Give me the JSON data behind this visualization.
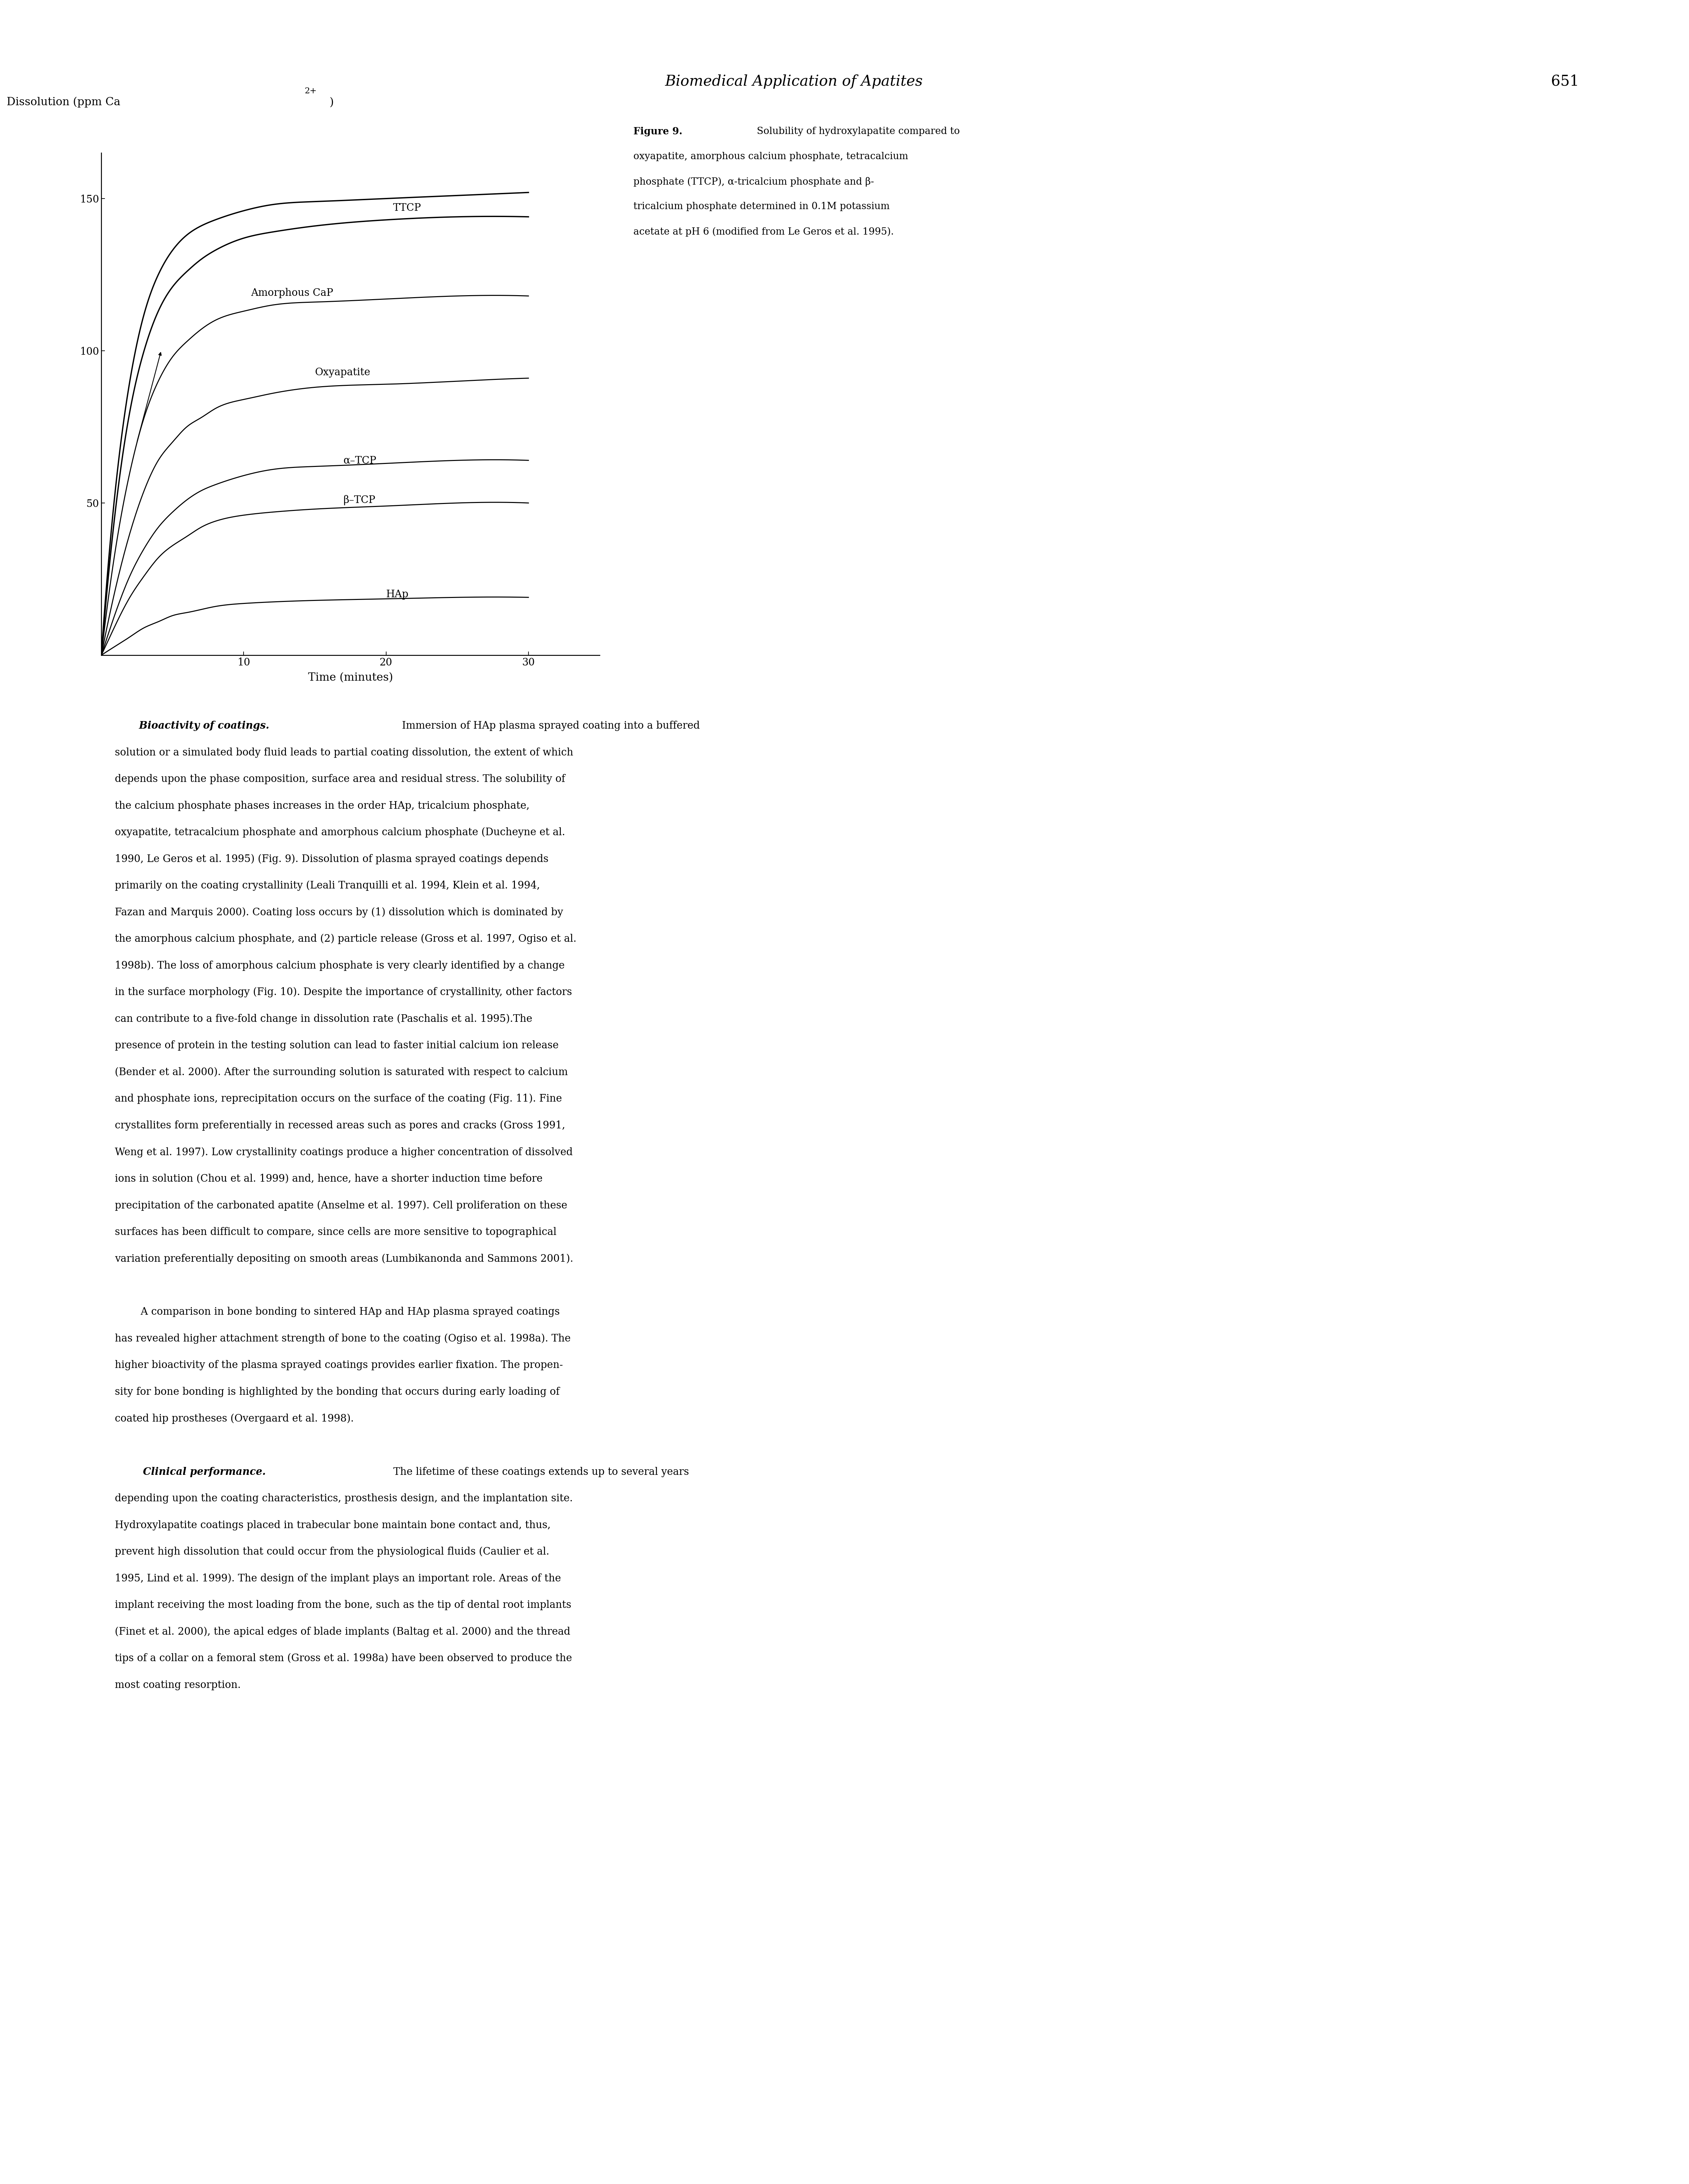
{
  "page_title": "Biomedical Application of Apatites",
  "page_number": "651",
  "figure_caption_bold": "Figure 9.",
  "figure_caption_text": " Solubility of hydroxylapatite compared to oxyapatite, amorphous calcium phosphate, tetracalcium phosphate (TTCP), α-tricalcium phosphate and β-tricalcium phosphate determined in 0.1M potassium acetate at pH 6 (modified from Le Geros et al. 1995).",
  "ylabel_main": "Dissolution (ppm Ca",
  "ylabel_super": "2+",
  "ylabel_end": ")",
  "xlabel": "Time (minutes)",
  "yticks": [
    50,
    100,
    150
  ],
  "xticks": [
    10,
    20,
    30
  ],
  "xlim": [
    0,
    35
  ],
  "ylim": [
    0,
    165
  ],
  "curves": {
    "TTCP_upper": {
      "x": [
        0,
        1,
        2,
        3,
        4,
        5,
        6,
        7,
        8,
        10,
        12,
        15,
        20,
        25,
        30
      ],
      "y": [
        0,
        55,
        90,
        112,
        125,
        133,
        138,
        141,
        143,
        146,
        148,
        149,
        150,
        151,
        152
      ]
    },
    "TTCP_lower": {
      "x": [
        0,
        1,
        2,
        3,
        4,
        5,
        6,
        7,
        8,
        10,
        12,
        15,
        20,
        25,
        30
      ],
      "y": [
        0,
        48,
        80,
        100,
        113,
        121,
        126,
        130,
        133,
        137,
        139,
        141,
        143,
        144,
        144
      ]
    },
    "AmorphousCaP": {
      "x": [
        0,
        1,
        2,
        3,
        4,
        5,
        6,
        7,
        8,
        10,
        12,
        15,
        20,
        25,
        30
      ],
      "y": [
        0,
        35,
        60,
        78,
        90,
        98,
        103,
        107,
        110,
        113,
        115,
        116,
        117,
        118,
        118
      ]
    },
    "Oxyapatite": {
      "x": [
        0,
        1,
        2,
        3,
        4,
        5,
        6,
        7,
        8,
        10,
        12,
        15,
        20,
        25,
        30
      ],
      "y": [
        0,
        22,
        40,
        54,
        64,
        70,
        75,
        78,
        81,
        84,
        86,
        88,
        89,
        90,
        91
      ]
    },
    "alphaTCP": {
      "x": [
        0,
        1,
        2,
        3,
        4,
        5,
        6,
        7,
        8,
        10,
        12,
        15,
        20,
        25,
        30
      ],
      "y": [
        0,
        14,
        26,
        35,
        42,
        47,
        51,
        54,
        56,
        59,
        61,
        62,
        63,
        64,
        64
      ]
    },
    "betaTCP": {
      "x": [
        0,
        1,
        2,
        3,
        4,
        5,
        6,
        7,
        8,
        10,
        12,
        15,
        20,
        25,
        30
      ],
      "y": [
        0,
        10,
        19,
        26,
        32,
        36,
        39,
        42,
        44,
        46,
        47,
        48,
        49,
        50,
        50
      ]
    },
    "HAp": {
      "x": [
        0,
        1,
        2,
        3,
        4,
        5,
        6,
        7,
        8,
        10,
        12,
        15,
        20,
        25,
        30
      ],
      "y": [
        0,
        3,
        6,
        9,
        11,
        13,
        14,
        15,
        16,
        17,
        17.5,
        18,
        18.5,
        19,
        19
      ]
    }
  },
  "background_color": "#ffffff",
  "text_color": "#000000",
  "p1_lines": [
    "     Bioactivity of coatings. Immersion of HAp plasma sprayed coating into a buffered",
    "solution or a simulated body fluid leads to partial coating dissolution, the extent of which",
    "depends upon the phase composition, surface area and residual stress. The solubility of",
    "the calcium phosphate phases increases in the order HAp, tricalcium phosphate,",
    "oxyapatite, tetracalcium phosphate and amorphous calcium phosphate (Ducheyne et al.",
    "1990, Le Geros et al. 1995) (Fig. 9). Dissolution of plasma sprayed coatings depends",
    "primarily on the coating crystallinity (Leali Tranquilli et al. 1994, Klein et al. 1994,",
    "Fazan and Marquis 2000). Coating loss occurs by (1) dissolution which is dominated by",
    "the amorphous calcium phosphate, and (2) particle release (Gross et al. 1997, Ogiso et al.",
    "1998b). The loss of amorphous calcium phosphate is very clearly identified by a change",
    "in the surface morphology (Fig. 10). Despite the importance of crystallinity, other factors",
    "can contribute to a five-fold change in dissolution rate (Paschalis et al. 1995).The",
    "presence of protein in the testing solution can lead to faster initial calcium ion release",
    "(Bender et al. 2000). After the surrounding solution is saturated with respect to calcium",
    "and phosphate ions, reprecipitation occurs on the surface of the coating (Fig. 11). Fine",
    "crystallites form preferentially in recessed areas such as pores and cracks (Gross 1991,",
    "Weng et al. 1997). Low crystallinity coatings produce a higher concentration of dissolved",
    "ions in solution (Chou et al. 1999) and, hence, have a shorter induction time before",
    "precipitation of the carbonated apatite (Anselme et al. 1997). Cell proliferation on these",
    "surfaces has been difficult to compare, since cells are more sensitive to topographical",
    "variation preferentially depositing on smooth areas (Lumbikanonda and Sammons 2001)."
  ],
  "p2_lines": [
    "        A comparison in bone bonding to sintered HAp and HAp plasma sprayed coatings",
    "has revealed higher attachment strength of bone to the coating (Ogiso et al. 1998a). The",
    "higher bioactivity of the plasma sprayed coatings provides earlier fixation. The propen-",
    "sity for bone bonding is highlighted by the bonding that occurs during early loading of",
    "coated hip prostheses (Overgaard et al. 1998)."
  ],
  "p3_lines": [
    "        Clinical performance. The lifetime of these coatings extends up to several years",
    "depending upon the coating characteristics, prosthesis design, and the implantation site.",
    "Hydroxylapatite coatings placed in trabecular bone maintain bone contact and, thus,",
    "prevent high dissolution that could occur from the physiological fluids (Caulier et al.",
    "1995, Lind et al. 1999). The design of the implant plays an important role. Areas of the",
    "implant receiving the most loading from the bone, such as the tip of dental root implants",
    "(Finet et al. 2000), the apical edges of blade implants (Baltag et al. 2000) and the thread",
    "tips of a collar on a femoral stem (Gross et al. 1998a) have been observed to produce the",
    "most coating resorption."
  ],
  "caption_lines": [
    "Solubility of hydroxylapatite compared to",
    "oxyapatite, amorphous calcium phosphate, tetracalcium",
    "phosphate (TTCP), α-tricalcium phosphate and β-",
    "tricalcium phosphate determined in 0.1M potassium",
    "acetate at pH 6 (modified from Le Geros et al. 1995)."
  ]
}
